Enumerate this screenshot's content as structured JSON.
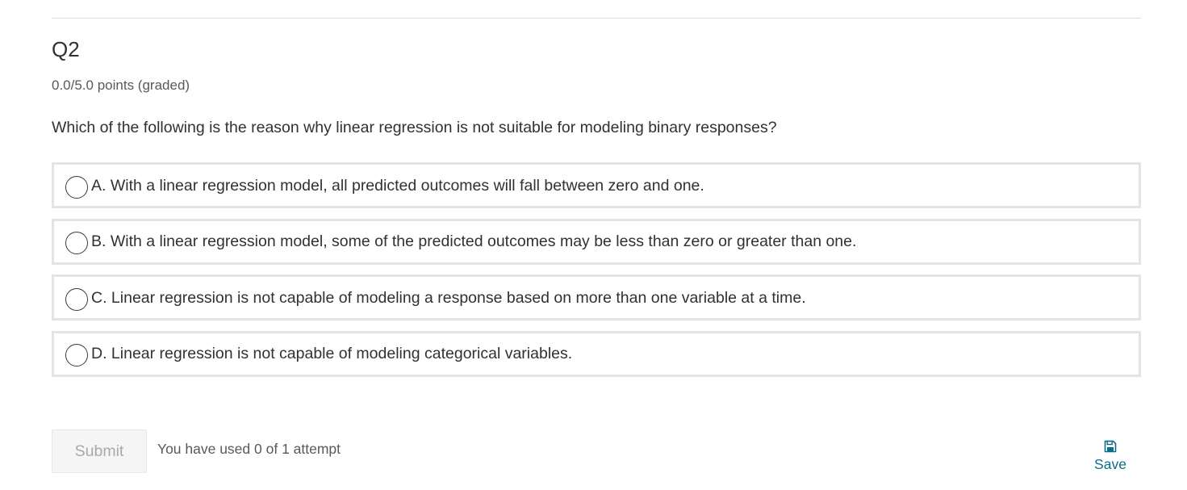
{
  "problem": {
    "title": "Q2",
    "points": "0.0/5.0 points (graded)",
    "question": "Which of the following is the reason why linear regression is not suitable for modeling binary responses?",
    "choices": [
      {
        "label": "A. With a linear regression model, all predicted outcomes will fall between zero and one.",
        "selected": false
      },
      {
        "label": "B. With a linear regression model, some of the predicted outcomes may be less than zero or greater than one.",
        "selected": false
      },
      {
        "label": "C. Linear regression is not capable of modeling a response based on more than one variable at a time.",
        "selected": false
      },
      {
        "label": "D. Linear regression is not capable of modeling categorical variables.",
        "selected": false
      }
    ]
  },
  "actions": {
    "submit_label": "Submit",
    "attempts_text": "You have used 0 of 1 attempt",
    "save_label": "Save",
    "save_icon": "floppy-disk-icon"
  },
  "colors": {
    "text": "#313131",
    "muted_text": "#595959",
    "choice_border": "#e4e4e4",
    "link": "#0e6c8b",
    "disabled_text": "#a9a9a9"
  }
}
